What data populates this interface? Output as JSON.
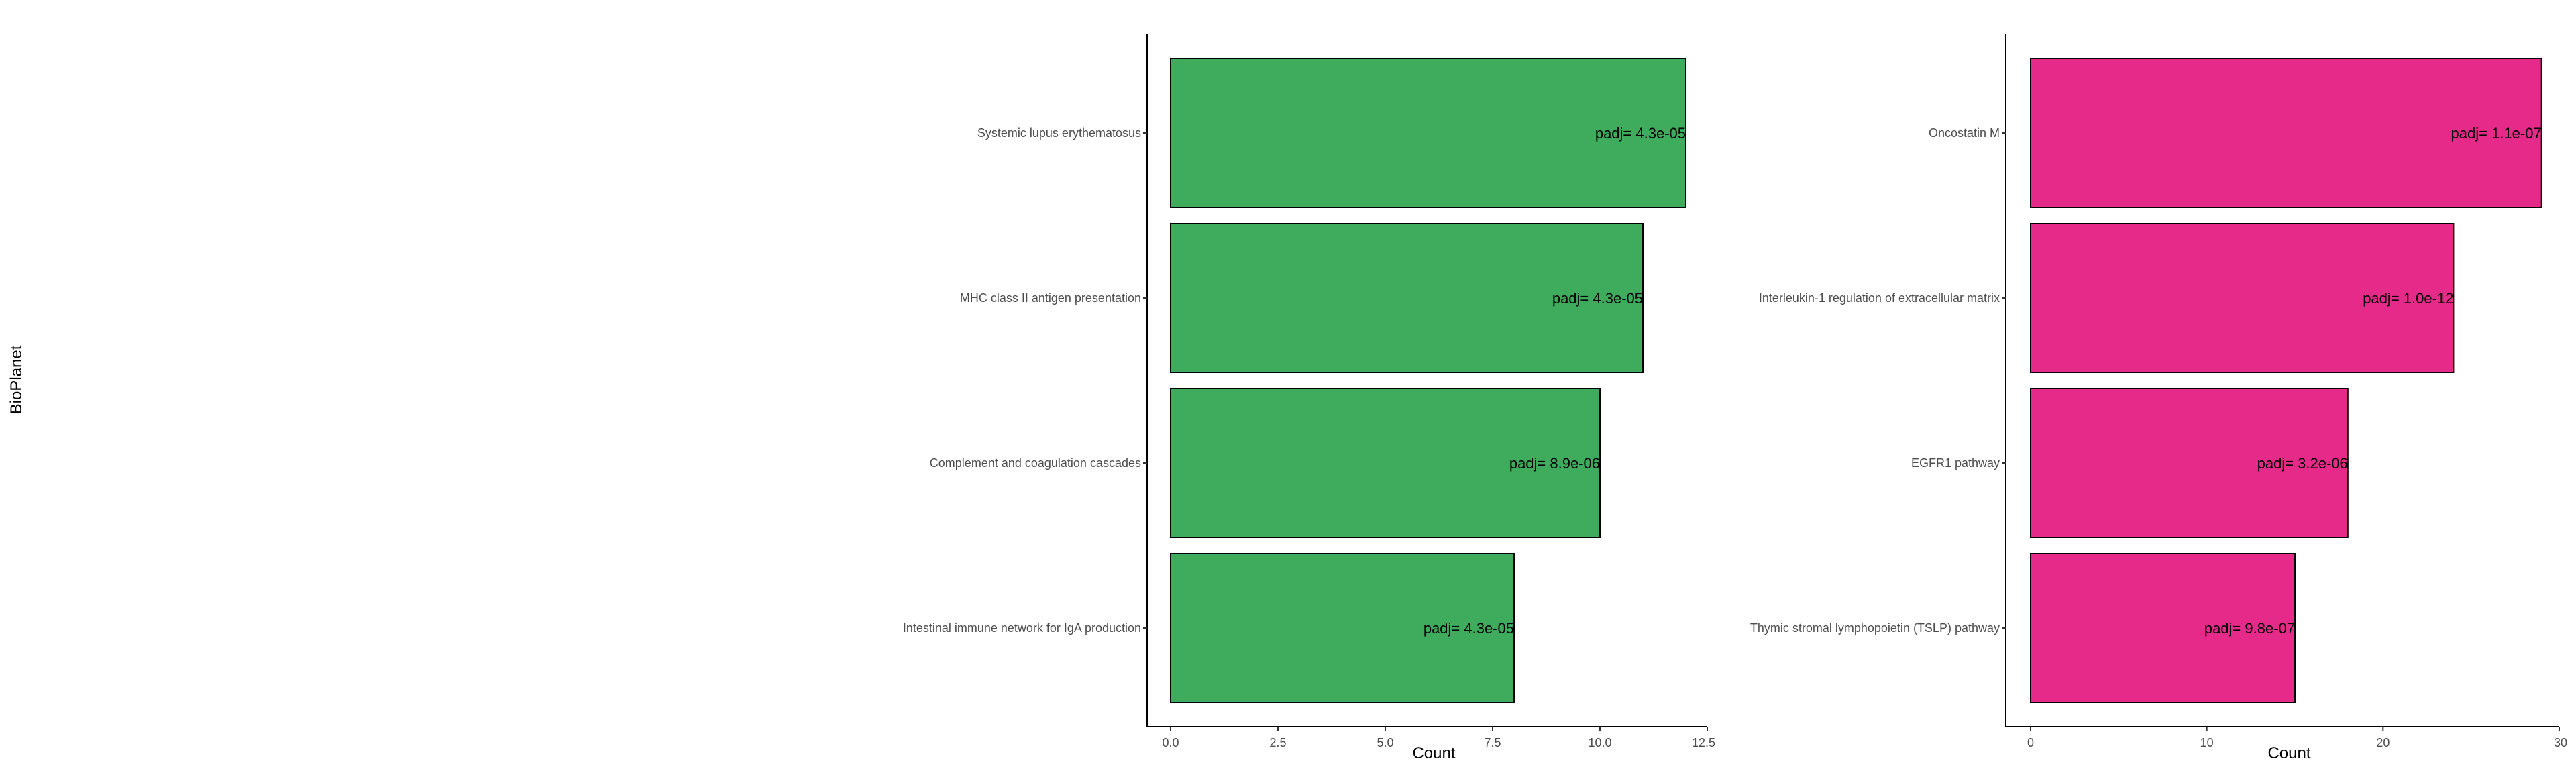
{
  "chart_data": {
    "type": "bar",
    "orientation": "horizontal",
    "ylabel": "BioPlanet",
    "panels": [
      {
        "categories": [
          "Systemic lupus erythematosus",
          "MHC class II antigen presentation",
          "Complement and coagulation cascades",
          "Intestinal immune network for IgA production"
        ],
        "values": [
          12,
          11,
          10,
          8
        ],
        "labels": [
          "padj= 4.3e-05",
          "padj= 4.3e-05",
          "padj= 8.9e-06",
          "padj= 4.3e-05"
        ],
        "color": "#3fab5c",
        "xlabel": "Count",
        "xlim": [
          0,
          12.5
        ],
        "xticks": [
          0,
          2.5,
          5,
          7.5,
          10,
          12.5
        ],
        "xtick_labels": [
          "0.0",
          "2.5",
          "5.0",
          "7.5",
          "10.0",
          "12.5"
        ]
      },
      {
        "categories": [
          "Oncostatin M",
          "Interleukin-1 regulation of extracellular matrix",
          "EGFR1 pathway",
          "Thymic stromal lymphopoietin (TSLP) pathway"
        ],
        "values": [
          29,
          24,
          18,
          15
        ],
        "labels": [
          "padj= 1.1e-07",
          "padj= 1.0e-12",
          "padj= 3.2e-06",
          "padj= 9.8e-07"
        ],
        "color": "#e62a89",
        "xlabel": "Count",
        "xlim": [
          0,
          30
        ],
        "xticks": [
          0,
          10,
          20,
          30
        ],
        "xtick_labels": [
          "0",
          "10",
          "20",
          "30"
        ]
      }
    ]
  }
}
